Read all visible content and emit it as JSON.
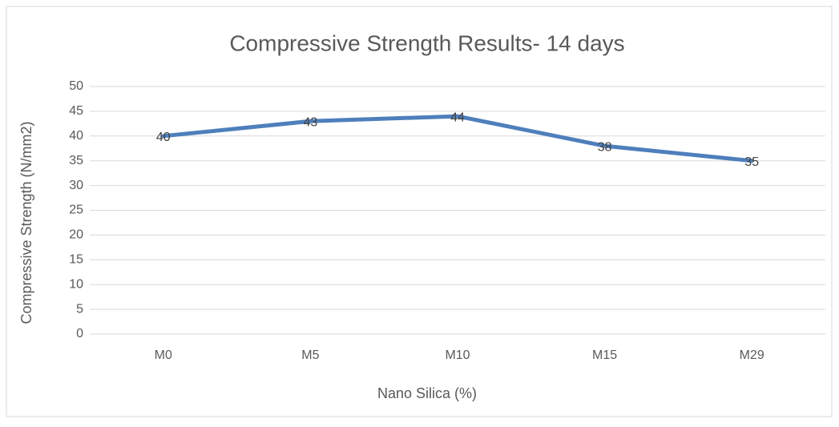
{
  "chart_data": {
    "type": "line",
    "title": "Compressive Strength Results- 14 days",
    "x_label": "Nano Silica (%)",
    "y_label": "Compressive Strength (N/mm2)",
    "categories": [
      "M0",
      "M5",
      "M10",
      "M15",
      "M29"
    ],
    "series": [
      {
        "name": "Compressive Strength",
        "color": "#4e7fbc",
        "values": [
          40,
          43,
          44,
          38,
          35
        ]
      }
    ],
    "ylim": [
      0,
      50
    ],
    "yticks": [
      0,
      5,
      10,
      15,
      20,
      25,
      30,
      35,
      40,
      45,
      50
    ],
    "grid": true
  }
}
